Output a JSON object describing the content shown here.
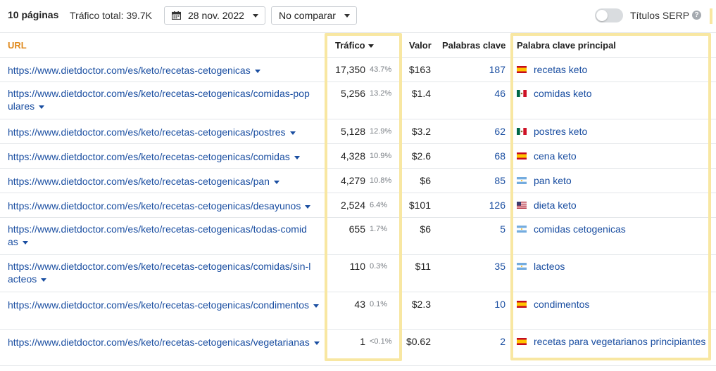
{
  "toolbar": {
    "pages_label": "10 páginas",
    "traffic_total": "Tráfico total: 39.7K",
    "date": "28 nov. 2022",
    "compare": "No comparar",
    "serp_label": "Títulos SERP",
    "help": "?"
  },
  "columns": {
    "url": "URL",
    "traffic": "Tráfico",
    "value": "Valor",
    "keywords": "Palabras clave",
    "main_keyword": "Palabra clave principal"
  },
  "colors": {
    "url_header": "#e08a1e",
    "link": "#1a4ea1",
    "highlight": "#f8e7a2"
  },
  "rows": [
    {
      "url_l1": "https://www.dietdoctor.com/es/keto/recetas-cetogenicas",
      "url_l2": "",
      "traffic": "17,350",
      "pct": "43.7%",
      "value": "$163",
      "keywords": "187",
      "flag": "es",
      "main_keyword": "recetas keto"
    },
    {
      "url_l1": "https://www.dietdoctor.com/es/keto/recetas-cetogenicas/comidas-pop",
      "url_l2": "ulares",
      "traffic": "5,256",
      "pct": "13.2%",
      "value": "$1.4",
      "keywords": "46",
      "flag": "mx",
      "main_keyword": "comidas keto"
    },
    {
      "url_l1": "https://www.dietdoctor.com/es/keto/recetas-cetogenicas/postres",
      "url_l2": "",
      "traffic": "5,128",
      "pct": "12.9%",
      "value": "$3.2",
      "keywords": "62",
      "flag": "mx",
      "main_keyword": "postres keto"
    },
    {
      "url_l1": "https://www.dietdoctor.com/es/keto/recetas-cetogenicas/comidas",
      "url_l2": "",
      "traffic": "4,328",
      "pct": "10.9%",
      "value": "$2.6",
      "keywords": "68",
      "flag": "es",
      "main_keyword": "cena keto"
    },
    {
      "url_l1": "https://www.dietdoctor.com/es/keto/recetas-cetogenicas/pan",
      "url_l2": "",
      "traffic": "4,279",
      "pct": "10.8%",
      "value": "$6",
      "keywords": "85",
      "flag": "ar",
      "main_keyword": "pan keto"
    },
    {
      "url_l1": "https://www.dietdoctor.com/es/keto/recetas-cetogenicas/desayunos",
      "url_l2": "",
      "traffic": "2,524",
      "pct": "6.4%",
      "value": "$101",
      "keywords": "126",
      "flag": "us",
      "main_keyword": "dieta keto"
    },
    {
      "url_l1": "https://www.dietdoctor.com/es/keto/recetas-cetogenicas/todas-comid",
      "url_l2": "as",
      "traffic": "655",
      "pct": "1.7%",
      "value": "$6",
      "keywords": "5",
      "flag": "ar",
      "main_keyword": "comidas cetogenicas"
    },
    {
      "url_l1": "https://www.dietdoctor.com/es/keto/recetas-cetogenicas/comidas/sin-l",
      "url_l2": "acteos",
      "traffic": "110",
      "pct": "0.3%",
      "value": "$11",
      "keywords": "35",
      "flag": "ar",
      "main_keyword": "lacteos"
    },
    {
      "url_l1": "https://www.dietdoctor.com/es/keto/recetas-cetogenicas/condimentos",
      "url_l2": "",
      "traffic": "43",
      "pct": "0.1%",
      "value": "$2.3",
      "keywords": "10",
      "flag": "es",
      "main_keyword": "condimentos"
    },
    {
      "url_l1": "https://www.dietdoctor.com/es/keto/recetas-cetogenicas/vegetarianas",
      "url_l2": "",
      "traffic": "1",
      "pct": "<0.1%",
      "value": "$0.62",
      "keywords": "2",
      "flag": "es",
      "main_keyword": "recetas para vegetarianos principiantes"
    }
  ]
}
